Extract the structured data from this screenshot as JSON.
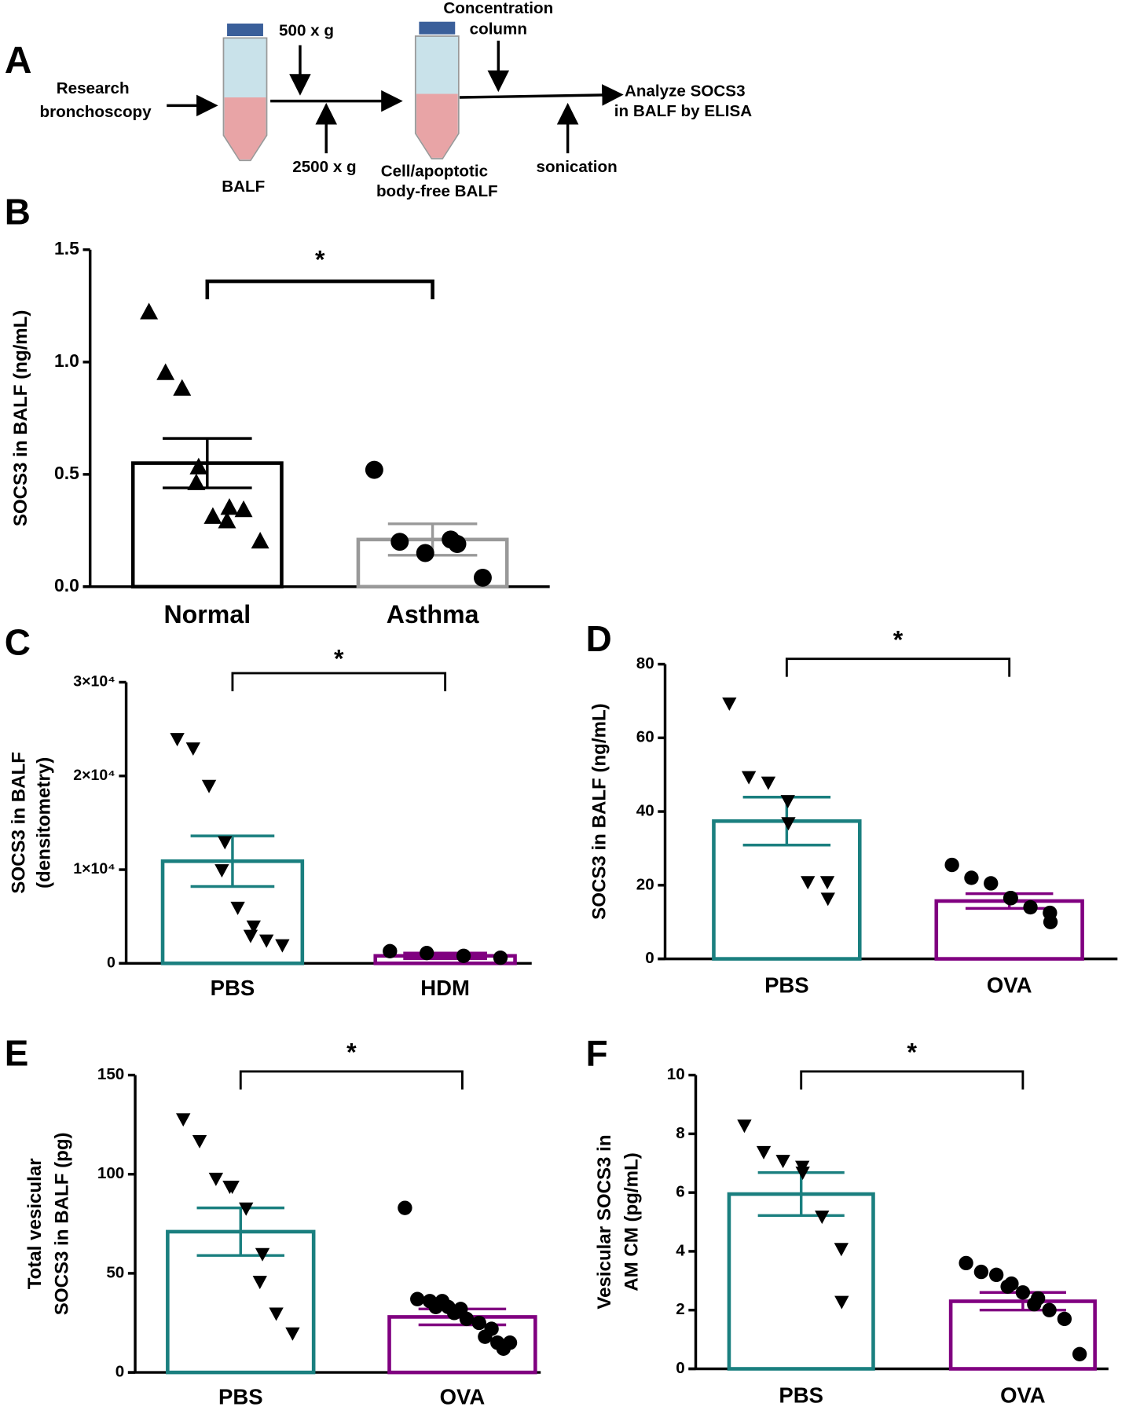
{
  "diagram": {
    "label": "A",
    "start": [
      "Research",
      "bronchoscopy"
    ],
    "tube1": "BALF",
    "spin1": "500 x g",
    "spin2": "2500 x g",
    "tube2": [
      "Cell/apoptotic",
      "body-free BALF"
    ],
    "concentrate": [
      "Concentration",
      "column"
    ],
    "sonicate": "sonication",
    "end": [
      "Analyze SOCS3",
      "in BALF by ELISA"
    ]
  },
  "chart_data": [
    {
      "panel": "B",
      "type": "bar",
      "ylabel": [
        "SOCS3 in BALF (ng/mL)"
      ],
      "categories": [
        "Normal",
        "Asthma"
      ],
      "groups": [
        {
          "mean": 0.55,
          "sem": 0.11,
          "color": "#000000",
          "marker": "triangle-up",
          "points": [
            1.22,
            0.95,
            0.88,
            0.53,
            0.46,
            0.31,
            0.35,
            0.29,
            0.34,
            0.2
          ]
        },
        {
          "mean": 0.21,
          "sem": 0.07,
          "color": "#999999",
          "marker": "circle",
          "points": [
            0.52,
            0.2,
            0.15,
            0.21,
            0.19,
            0.04
          ]
        }
      ],
      "ylim": [
        0,
        1.5
      ],
      "yticks": [
        {
          "value": 0,
          "label": "0.0"
        },
        0.5,
        {
          "value": 1,
          "label": "1.0"
        },
        1.5
      ],
      "significance": "*"
    },
    {
      "panel": "C",
      "type": "bar",
      "ylabel": [
        "SOCS3 in BALF",
        "(densitometry)"
      ],
      "categories": [
        "PBS",
        "HDM"
      ],
      "groups": [
        {
          "mean": 10900,
          "sem": 2700,
          "color": "#1a7f7f",
          "marker": "triangle-down",
          "points": [
            24000,
            23000,
            19000,
            13000,
            10000,
            6000,
            4000,
            3000,
            2500,
            2000
          ]
        },
        {
          "mean": 800,
          "sem": 300,
          "color": "#800080",
          "marker": "circle",
          "points": [
            1300,
            1100,
            800,
            600
          ]
        }
      ],
      "ylim": [
        0,
        30000
      ],
      "yticks": [
        0,
        {
          "value": 10000,
          "label": "1×10⁴"
        },
        {
          "value": 20000,
          "label": "2×10⁴"
        },
        {
          "value": 30000,
          "label": "3×10⁴"
        }
      ],
      "significance": "*"
    },
    {
      "panel": "D",
      "type": "bar",
      "ylabel": [
        "SOCS3 in BALF (ng/mL)"
      ],
      "categories": [
        "PBS",
        "OVA"
      ],
      "groups": [
        {
          "mean": 37.4,
          "sem": 6.5,
          "color": "#1a7f7f",
          "marker": "triangle-down",
          "points": [
            69.5,
            49.5,
            48,
            43,
            37,
            21,
            21,
            16.5
          ]
        },
        {
          "mean": 15.7,
          "sem": 2,
          "color": "#800080",
          "marker": "circle",
          "points": [
            25.5,
            22,
            20.5,
            16.5,
            16.5,
            14,
            12.5,
            10
          ]
        }
      ],
      "ylim": [
        0,
        80
      ],
      "yticks": [
        0,
        20,
        40,
        60,
        80
      ],
      "significance": "*"
    },
    {
      "panel": "E",
      "type": "bar",
      "ylabel": [
        "Total vesicular",
        "SOCS3 in BALF (pg)"
      ],
      "categories": [
        "PBS",
        "OVA"
      ],
      "groups": [
        {
          "mean": 71,
          "sem": 12,
          "color": "#1a7f7f",
          "marker": "triangle-down",
          "points": [
            128,
            117,
            98,
            94,
            94,
            83,
            60,
            46,
            30,
            20
          ]
        },
        {
          "mean": 28,
          "sem": 4,
          "color": "#800080",
          "marker": "circle",
          "points": [
            83,
            37,
            36,
            36,
            33,
            33,
            32,
            30,
            27,
            25,
            22,
            18,
            15,
            15,
            12
          ]
        }
      ],
      "ylim": [
        0,
        150
      ],
      "yticks": [
        0,
        50,
        100,
        150
      ],
      "significance": "*"
    },
    {
      "panel": "F",
      "type": "bar",
      "ylabel": [
        "Vesicular SOCS3 in",
        "AM CM (pg/mL)"
      ],
      "categories": [
        "PBS",
        "OVA"
      ],
      "groups": [
        {
          "mean": 5.95,
          "sem": 0.73,
          "color": "#1a7f7f",
          "marker": "triangle-down",
          "points": [
            8.3,
            7.4,
            7.1,
            6.9,
            6.7,
            5.2,
            4.1,
            2.3
          ]
        },
        {
          "mean": 2.3,
          "sem": 0.3,
          "color": "#800080",
          "marker": "circle",
          "points": [
            3.6,
            3.3,
            3.2,
            2.9,
            2.8,
            2.6,
            2.4,
            2.2,
            2,
            1.7,
            0.5
          ]
        }
      ],
      "ylim": [
        0,
        10
      ],
      "yticks": [
        0,
        2,
        4,
        6,
        8,
        10
      ],
      "significance": "*"
    }
  ]
}
